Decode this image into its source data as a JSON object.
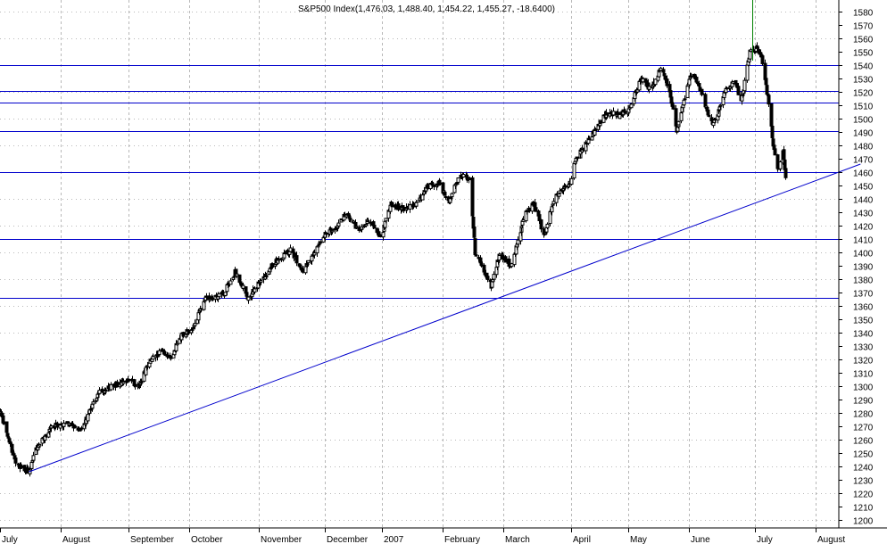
{
  "chart_data": {
    "type": "candlestick",
    "title": "S&P500 Index(1,476.03, 1,488.40, 1,454.22, 1,455.27, -18.6400)",
    "xlabel": "",
    "ylabel": "",
    "ylim": [
      1193,
      1590
    ],
    "y_ticks": [
      1200,
      1210,
      1220,
      1230,
      1240,
      1250,
      1260,
      1270,
      1280,
      1290,
      1300,
      1310,
      1320,
      1330,
      1340,
      1350,
      1360,
      1370,
      1380,
      1390,
      1400,
      1410,
      1420,
      1430,
      1440,
      1450,
      1460,
      1470,
      1480,
      1490,
      1500,
      1510,
      1520,
      1530,
      1540,
      1550,
      1560,
      1570,
      1580
    ],
    "x_ticks": [
      "July",
      "August",
      "September",
      "October",
      "November",
      "December",
      "2007",
      "February",
      "March",
      "April",
      "May",
      "June",
      "July",
      "August"
    ],
    "grid": true,
    "colors": {
      "background": "#ffffff",
      "grid": "#b8b8b8",
      "candles": "#000000",
      "support_lines": "#0000cc",
      "marker": "#008000"
    },
    "horizontal_lines": [
      1540,
      1521,
      1512,
      1491,
      1460,
      1410,
      1366
    ],
    "trendline": {
      "from": {
        "day": 34,
        "value": 1236
      },
      "to": {
        "day": 1008,
        "value": 1466
      }
    },
    "anchors": [
      {
        "day": 0,
        "close": 1280
      },
      {
        "day": 20,
        "close": 1240
      },
      {
        "day": 34,
        "close": 1236
      },
      {
        "day": 40,
        "close": 1250
      },
      {
        "day": 60,
        "close": 1270
      },
      {
        "day": 80,
        "close": 1272
      },
      {
        "day": 95,
        "close": 1268
      },
      {
        "day": 115,
        "close": 1295
      },
      {
        "day": 135,
        "close": 1301
      },
      {
        "day": 148,
        "close": 1306
      },
      {
        "day": 162,
        "close": 1300
      },
      {
        "day": 172,
        "close": 1316
      },
      {
        "day": 188,
        "close": 1326
      },
      {
        "day": 200,
        "close": 1322
      },
      {
        "day": 212,
        "close": 1338
      },
      {
        "day": 225,
        "close": 1343
      },
      {
        "day": 240,
        "close": 1365
      },
      {
        "day": 262,
        "close": 1369
      },
      {
        "day": 275,
        "close": 1385
      },
      {
        "day": 290,
        "close": 1366
      },
      {
        "day": 305,
        "close": 1379
      },
      {
        "day": 322,
        "close": 1393
      },
      {
        "day": 340,
        "close": 1402
      },
      {
        "day": 355,
        "close": 1385
      },
      {
        "day": 368,
        "close": 1400
      },
      {
        "day": 380,
        "close": 1413
      },
      {
        "day": 395,
        "close": 1420
      },
      {
        "day": 405,
        "close": 1430
      },
      {
        "day": 420,
        "close": 1416
      },
      {
        "day": 432,
        "close": 1425
      },
      {
        "day": 445,
        "close": 1411
      },
      {
        "day": 458,
        "close": 1436
      },
      {
        "day": 472,
        "close": 1432
      },
      {
        "day": 488,
        "close": 1437
      },
      {
        "day": 500,
        "close": 1449
      },
      {
        "day": 515,
        "close": 1452
      },
      {
        "day": 525,
        "close": 1437
      },
      {
        "day": 538,
        "close": 1458
      },
      {
        "day": 550,
        "close": 1456
      },
      {
        "day": 556,
        "close": 1400
      },
      {
        "day": 568,
        "close": 1385
      },
      {
        "day": 575,
        "close": 1375
      },
      {
        "day": 585,
        "close": 1400
      },
      {
        "day": 598,
        "close": 1390
      },
      {
        "day": 605,
        "close": 1405
      },
      {
        "day": 615,
        "close": 1430
      },
      {
        "day": 625,
        "close": 1436
      },
      {
        "day": 638,
        "close": 1412
      },
      {
        "day": 648,
        "close": 1440
      },
      {
        "day": 660,
        "close": 1448
      },
      {
        "day": 668,
        "close": 1452
      },
      {
        "day": 672,
        "close": 1468
      },
      {
        "day": 685,
        "close": 1480
      },
      {
        "day": 698,
        "close": 1493
      },
      {
        "day": 712,
        "close": 1505
      },
      {
        "day": 725,
        "close": 1502
      },
      {
        "day": 738,
        "close": 1509
      },
      {
        "day": 750,
        "close": 1530
      },
      {
        "day": 762,
        "close": 1522
      },
      {
        "day": 775,
        "close": 1539
      },
      {
        "day": 785,
        "close": 1517
      },
      {
        "day": 792,
        "close": 1490
      },
      {
        "day": 800,
        "close": 1510
      },
      {
        "day": 810,
        "close": 1536
      },
      {
        "day": 822,
        "close": 1519
      },
      {
        "day": 832,
        "close": 1496
      },
      {
        "day": 840,
        "close": 1502
      },
      {
        "day": 850,
        "close": 1522
      },
      {
        "day": 860,
        "close": 1529
      },
      {
        "day": 868,
        "close": 1512
      },
      {
        "day": 878,
        "close": 1550
      },
      {
        "day": 885,
        "close": 1553
      },
      {
        "day": 892,
        "close": 1545
      },
      {
        "day": 900,
        "close": 1512
      },
      {
        "day": 905,
        "close": 1480
      },
      {
        "day": 912,
        "close": 1461
      },
      {
        "day": 917,
        "close": 1474
      },
      {
        "day": 920,
        "close": 1455
      }
    ]
  }
}
